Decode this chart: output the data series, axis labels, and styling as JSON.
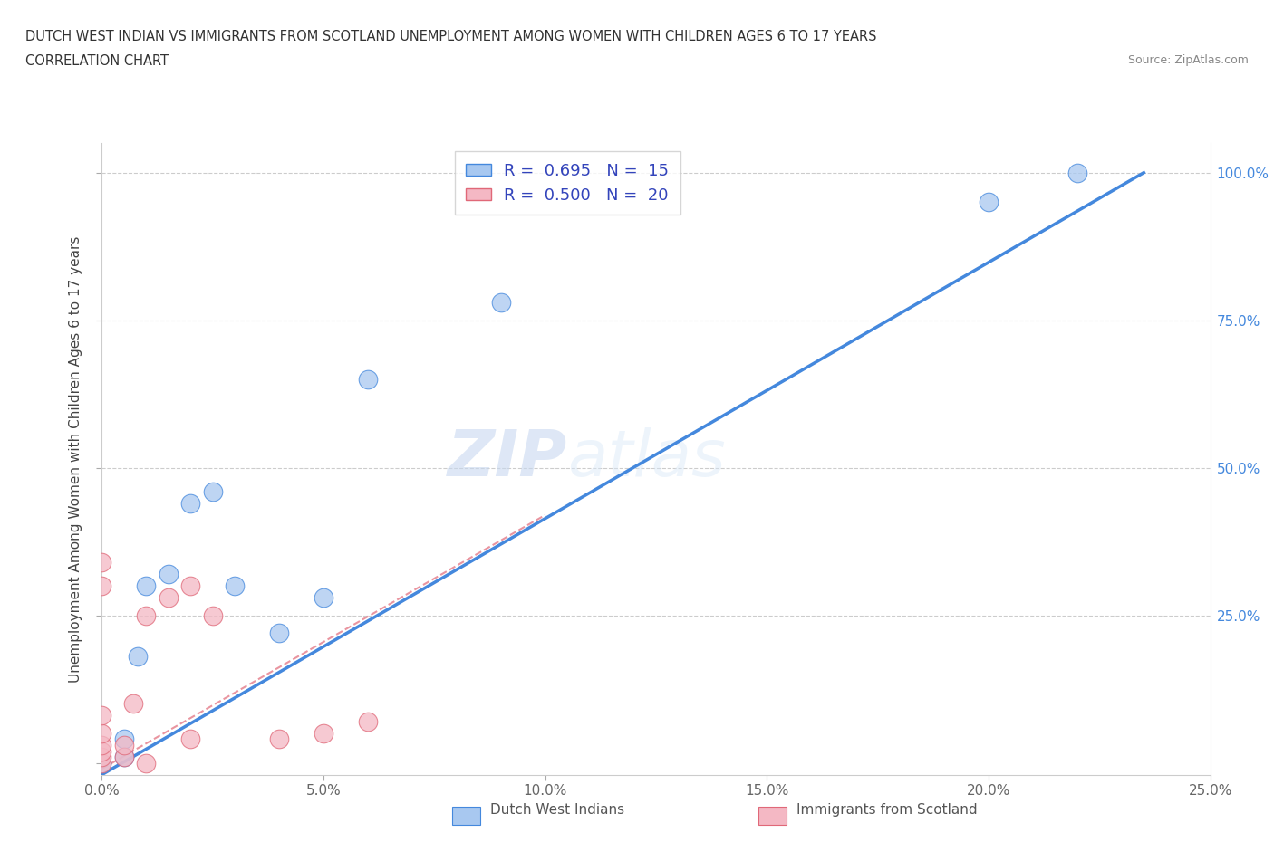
{
  "title_line1": "DUTCH WEST INDIAN VS IMMIGRANTS FROM SCOTLAND UNEMPLOYMENT AMONG WOMEN WITH CHILDREN AGES 6 TO 17 YEARS",
  "title_line2": "CORRELATION CHART",
  "source": "Source: ZipAtlas.com",
  "ylabel": "Unemployment Among Women with Children Ages 6 to 17 years",
  "xlim": [
    0,
    0.25
  ],
  "ylim": [
    0,
    1.05
  ],
  "ytick_labels": [
    "",
    "25.0%",
    "50.0%",
    "75.0%",
    "100.0%"
  ],
  "ytick_vals": [
    0,
    0.25,
    0.5,
    0.75,
    1.0
  ],
  "xtick_labels": [
    "0.0%",
    "5.0%",
    "10.0%",
    "15.0%",
    "20.0%",
    "25.0%"
  ],
  "xtick_vals": [
    0,
    0.05,
    0.1,
    0.15,
    0.2,
    0.25
  ],
  "legend1_label": "Dutch West Indians",
  "legend2_label": "Immigrants from Scotland",
  "R1": "0.695",
  "N1": "15",
  "R2": "0.500",
  "N2": "20",
  "color_blue": "#a8c8f0",
  "color_pink": "#f4b8c4",
  "color_line_blue": "#4488dd",
  "color_line_pink": "#e06878",
  "color_dashed": "#c8b0c8",
  "blue_line": [
    [
      0.0,
      -0.02
    ],
    [
      0.235,
      1.0
    ]
  ],
  "pink_line": [
    [
      0.0,
      -0.01
    ],
    [
      0.1,
      0.42
    ]
  ],
  "blue_points": [
    [
      0.0,
      0.0
    ],
    [
      0.005,
      0.01
    ],
    [
      0.005,
      0.04
    ],
    [
      0.008,
      0.18
    ],
    [
      0.01,
      0.3
    ],
    [
      0.015,
      0.32
    ],
    [
      0.02,
      0.44
    ],
    [
      0.025,
      0.46
    ],
    [
      0.03,
      0.3
    ],
    [
      0.04,
      0.22
    ],
    [
      0.05,
      0.28
    ],
    [
      0.06,
      0.65
    ],
    [
      0.09,
      0.78
    ],
    [
      0.2,
      0.95
    ],
    [
      0.22,
      1.0
    ]
  ],
  "pink_points": [
    [
      0.0,
      0.0
    ],
    [
      0.0,
      0.01
    ],
    [
      0.0,
      0.02
    ],
    [
      0.0,
      0.03
    ],
    [
      0.0,
      0.05
    ],
    [
      0.0,
      0.08
    ],
    [
      0.0,
      0.3
    ],
    [
      0.0,
      0.34
    ],
    [
      0.005,
      0.01
    ],
    [
      0.005,
      0.03
    ],
    [
      0.007,
      0.1
    ],
    [
      0.01,
      0.0
    ],
    [
      0.01,
      0.25
    ],
    [
      0.015,
      0.28
    ],
    [
      0.02,
      0.04
    ],
    [
      0.02,
      0.3
    ],
    [
      0.025,
      0.25
    ],
    [
      0.04,
      0.04
    ],
    [
      0.05,
      0.05
    ],
    [
      0.06,
      0.07
    ]
  ]
}
